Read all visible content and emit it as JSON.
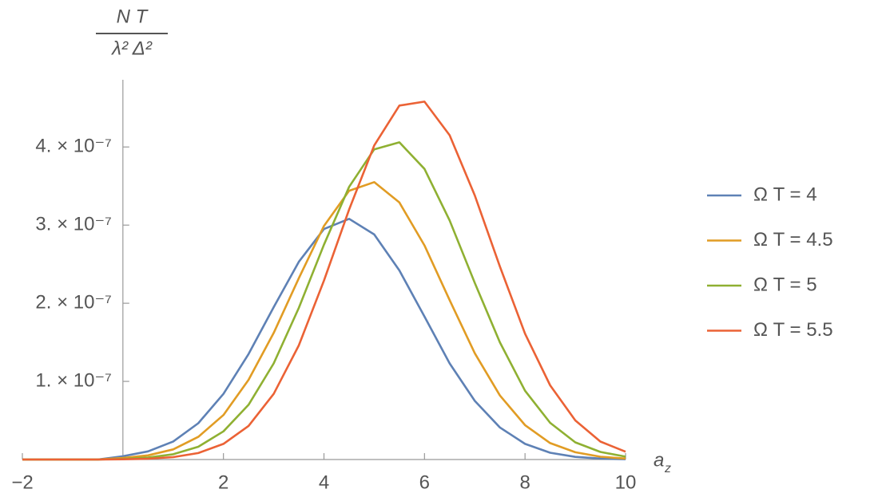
{
  "chart_data": {
    "type": "line",
    "y_label": {
      "numerator": "N T",
      "denominator": "λ² Δ²"
    },
    "x_label": {
      "base": "a",
      "sub": "z"
    },
    "x": [
      -2,
      -1.5,
      -1,
      -0.5,
      0,
      0.5,
      1,
      1.5,
      2,
      2.5,
      3,
      3.5,
      4,
      4.5,
      5,
      5.5,
      6,
      6.5,
      7,
      7.5,
      8,
      8.5,
      9,
      9.5,
      10
    ],
    "series": [
      {
        "name": "Ω T = 4",
        "color": "#5e81b5",
        "values": [
          0,
          0,
          0,
          0,
          4.2e-09,
          1.04e-08,
          2.31e-08,
          4.65e-08,
          8.4e-08,
          1.35e-07,
          1.95e-07,
          2.53e-07,
          2.95e-07,
          3.08e-07,
          2.88e-07,
          2.42e-07,
          1.83e-07,
          1.23e-07,
          7.5e-08,
          4.1e-08,
          2e-08,
          8.7e-09,
          3.4e-09,
          1.2e-09,
          4e-10
        ]
      },
      {
        "name": "Ω T = 4.5",
        "color": "#e19c24",
        "values": [
          0,
          0,
          0,
          0,
          1.9e-09,
          5.3e-09,
          1.3e-08,
          2.9e-08,
          5.7e-08,
          1.02e-07,
          1.62e-07,
          2.32e-07,
          2.99e-07,
          3.44e-07,
          3.55e-07,
          3.29e-07,
          2.74e-07,
          2.04e-07,
          1.36e-07,
          8.2e-08,
          4.4e-08,
          2.1e-08,
          9.3e-09,
          3.6e-09,
          1.2e-09
        ]
      },
      {
        "name": "Ω T = 5",
        "color": "#8fb032",
        "values": [
          0,
          0,
          0,
          0,
          8e-10,
          2.5e-09,
          6.7e-09,
          1.63e-08,
          3.6e-08,
          7e-08,
          1.23e-07,
          1.94e-07,
          2.75e-07,
          3.49e-07,
          3.97e-07,
          4.06e-07,
          3.72e-07,
          3.06e-07,
          2.26e-07,
          1.5e-07,
          8.8e-08,
          4.7e-08,
          2.2e-08,
          9.7e-09,
          3.7e-09
        ]
      },
      {
        "name": "Ω T = 5.5",
        "color": "#eb6235",
        "values": [
          0,
          0,
          0,
          0,
          3e-10,
          1e-09,
          3.1e-09,
          8.3e-09,
          2e-08,
          4.3e-08,
          8.4e-08,
          1.46e-07,
          2.29e-07,
          3.2e-07,
          4.02e-07,
          4.53e-07,
          4.58e-07,
          4.15e-07,
          3.38e-07,
          2.47e-07,
          1.61e-07,
          9.5e-08,
          5e-08,
          2.3e-08,
          1e-08
        ]
      }
    ],
    "xlim": [
      -2,
      10
    ],
    "xticks": [
      {
        "value": -2,
        "label": "−2"
      },
      2,
      4,
      6,
      8,
      10
    ],
    "ylim": [
      0,
      4.86e-07
    ],
    "yticks": [
      {
        "value": 1e-07,
        "label": "1. × 10⁻⁷"
      },
      {
        "value": 2e-07,
        "label": "2. × 10⁻⁷"
      },
      {
        "value": 3e-07,
        "label": "3. × 10⁻⁷"
      },
      {
        "value": 4e-07,
        "label": "4. × 10⁻⁷"
      }
    ],
    "legend": "right"
  }
}
